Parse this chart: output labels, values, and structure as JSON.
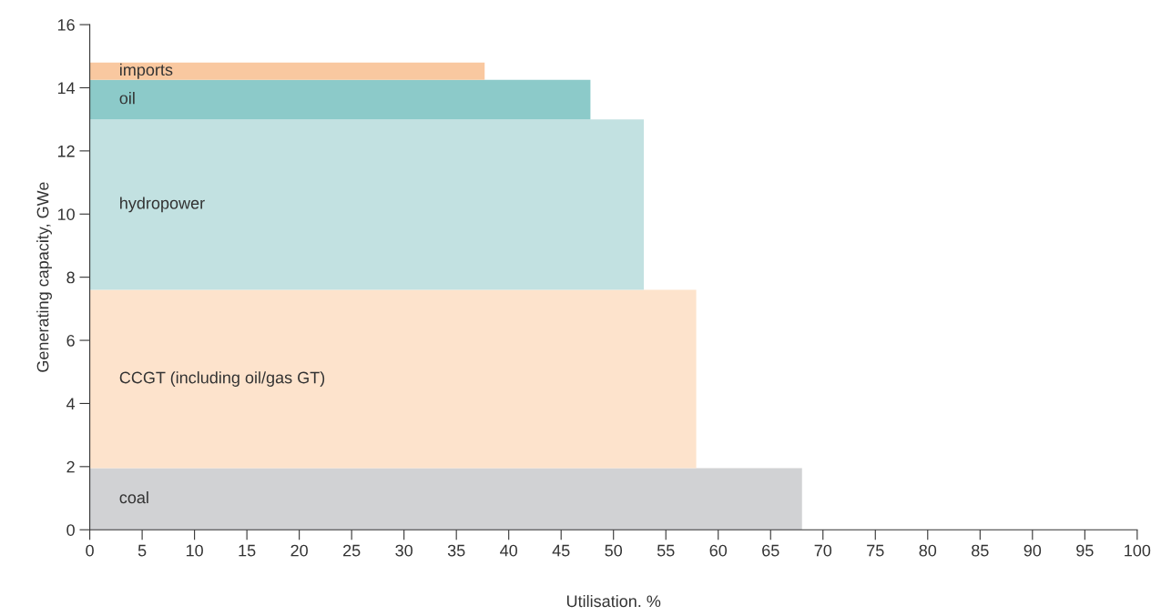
{
  "chart_data": {
    "type": "area",
    "stacked": true,
    "xlabel": "Utilisation. %",
    "ylabel": "Generating capacity, GWe",
    "xlim": [
      0,
      100
    ],
    "xticks": [
      0,
      5,
      10,
      15,
      20,
      25,
      30,
      35,
      40,
      45,
      50,
      55,
      60,
      65,
      70,
      75,
      80,
      85,
      90,
      95,
      100
    ],
    "ylim": [
      0,
      16
    ],
    "yticks": [
      0,
      2,
      4,
      6,
      8,
      10,
      12,
      14,
      16
    ],
    "grid": false,
    "legend": false,
    "series": [
      {
        "name": "coal",
        "color": "#d1d2d4",
        "x": [
          0,
          68
        ],
        "values": [
          1.95,
          1.95
        ]
      },
      {
        "name": "CCGT (including oil/gas GT)",
        "color": "#fde3cc",
        "x": [
          0,
          57.9
        ],
        "values": [
          5.65,
          5.65
        ]
      },
      {
        "name": "hydropower",
        "color": "#c2e1e1",
        "x": [
          0,
          52.9
        ],
        "values": [
          5.4,
          5.4
        ]
      },
      {
        "name": "oil",
        "color": "#8ccac9",
        "x": [
          0,
          47.8
        ],
        "values": [
          1.25,
          1.25
        ]
      },
      {
        "name": "imports",
        "color": "#f9c8a0",
        "x": [
          0,
          37.7
        ],
        "values": [
          0.55,
          0.55
        ]
      }
    ]
  }
}
